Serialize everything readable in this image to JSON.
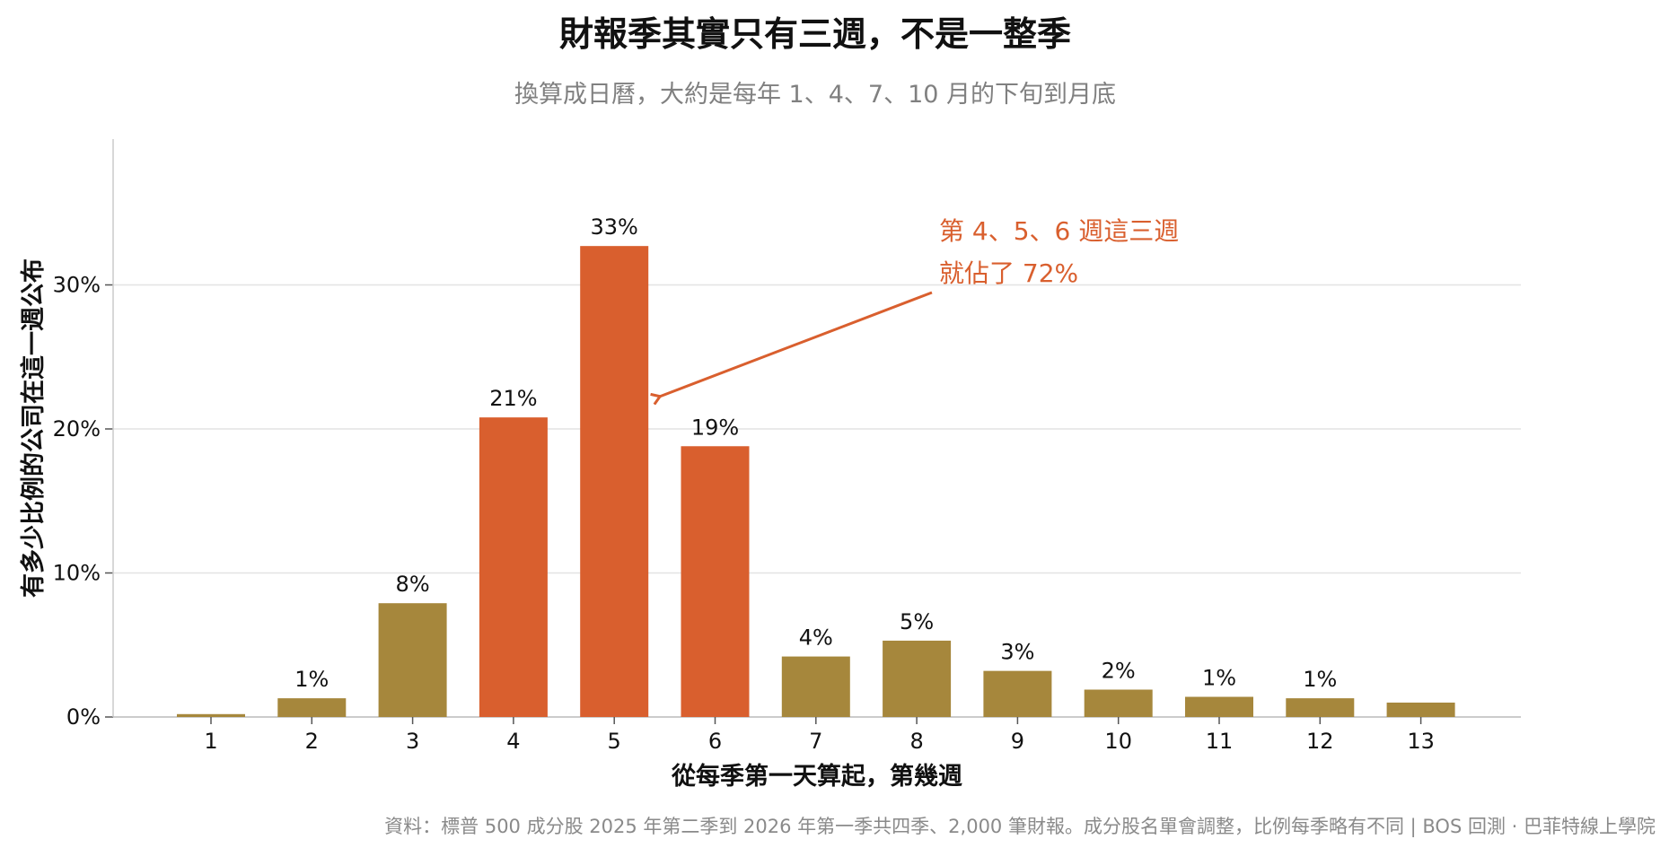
{
  "chart_data": {
    "type": "bar",
    "title": "財報季其實只有三週，不是一整季",
    "subtitle": "換算成日曆，大約是每年 1、4、7、10 月的下旬到月底",
    "xlabel": "從每季第一天算起，第幾週",
    "ylabel": "有多少比例的公司在這一週公布",
    "categories": [
      "1",
      "2",
      "3",
      "4",
      "5",
      "6",
      "7",
      "8",
      "9",
      "10",
      "11",
      "12",
      "13"
    ],
    "values": [
      0.2,
      1.3,
      7.9,
      20.8,
      32.7,
      18.8,
      4.2,
      5.3,
      3.2,
      1.9,
      1.4,
      1.3,
      1.0
    ],
    "data_labels": [
      "",
      "1%",
      "8%",
      "21%",
      "33%",
      "19%",
      "4%",
      "5%",
      "3%",
      "2%",
      "1%",
      "1%",
      ""
    ],
    "highlight": [
      false,
      false,
      false,
      true,
      true,
      true,
      false,
      false,
      false,
      false,
      false,
      false,
      false
    ],
    "ylim": [
      0,
      40
    ],
    "yticks": [
      0,
      10,
      20,
      30
    ],
    "ytick_labels": [
      "0%",
      "10%",
      "20%",
      "30%"
    ],
    "grid": true,
    "colors": {
      "normal": "#a6873c",
      "highlight": "#d95f2e",
      "annotation": "#d95f2e"
    },
    "annotation": {
      "lines": [
        "第 4、5、6 週這三週",
        "就佔了 72%"
      ],
      "points_to_category": "5"
    },
    "source": "資料：標普 500 成分股 2025 年第二季到 2026 年第一季共四季、2,000 筆財報。成分股名單會調整，比例每季略有不同 | BOS 回測 · 巴菲特線上學院"
  }
}
